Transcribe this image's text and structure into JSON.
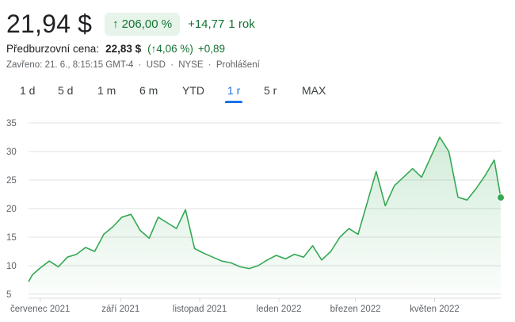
{
  "quote": {
    "price": "21,94 $",
    "change_pct": "206,00 %",
    "change_arrow": "↑",
    "change_abs": "+14,77",
    "period": "1 rok",
    "premarket_label": "Předburzovní cena:",
    "premarket_price": "22,83 $",
    "premarket_pct": "(↑4,06 %)",
    "premarket_abs": "+0,89",
    "closed_info": "Zavřeno: 21. 6., 8:15:15 GMT-4",
    "currency": "USD",
    "exchange": "NYSE",
    "disclaimer": "Prohlášení",
    "separator": "·"
  },
  "tabs": [
    {
      "label": "1 d",
      "active": false
    },
    {
      "label": "5 d",
      "active": false
    },
    {
      "label": "1 m",
      "active": false
    },
    {
      "label": "6 m",
      "active": false
    },
    {
      "label": "YTD",
      "active": false
    },
    {
      "label": "1 r",
      "active": true
    },
    {
      "label": "5 r",
      "active": false
    },
    {
      "label": "MAX",
      "active": false
    }
  ],
  "colors": {
    "line": "#34a853",
    "fill": "#e6f4ea",
    "positive": "#137333",
    "accent": "#1a73e8"
  },
  "chart_data": {
    "type": "area",
    "ylim": [
      5,
      35
    ],
    "yticks": [
      "35",
      "30",
      "25",
      "20",
      "15",
      "10",
      "5"
    ],
    "xticks": [
      "červenec 2021",
      "září 2021",
      "listopad 2021",
      "leden 2022",
      "březen 2022",
      "květen 2022"
    ],
    "grid": true,
    "last_value": 21.94,
    "series": [
      {
        "x": [
          "2021-06-22",
          "2021-06-25",
          "2021-07-01",
          "2021-07-08",
          "2021-07-15",
          "2021-07-22",
          "2021-07-29",
          "2021-08-05",
          "2021-08-12",
          "2021-08-19",
          "2021-08-26",
          "2021-09-02",
          "2021-09-09",
          "2021-09-16",
          "2021-09-23",
          "2021-09-30",
          "2021-10-07",
          "2021-10-14",
          "2021-10-21",
          "2021-10-28",
          "2021-11-04",
          "2021-11-11",
          "2021-11-18",
          "2021-11-25",
          "2021-12-02",
          "2021-12-09",
          "2021-12-16",
          "2021-12-23",
          "2021-12-30",
          "2022-01-06",
          "2022-01-13",
          "2022-01-20",
          "2022-01-27",
          "2022-02-03",
          "2022-02-10",
          "2022-02-17",
          "2022-02-24",
          "2022-03-03",
          "2022-03-10",
          "2022-03-17",
          "2022-03-24",
          "2022-03-31",
          "2022-04-07",
          "2022-04-14",
          "2022-04-21",
          "2022-04-28",
          "2022-05-05",
          "2022-05-12",
          "2022-05-19",
          "2022-05-26",
          "2022-06-02",
          "2022-06-09",
          "2022-06-16",
          "2022-06-21"
        ],
        "values": [
          7.2,
          8.4,
          9.6,
          10.8,
          9.8,
          11.5,
          12.0,
          13.2,
          12.5,
          15.5,
          16.8,
          18.5,
          19.0,
          16.2,
          14.8,
          18.5,
          17.5,
          16.5,
          19.8,
          13.0,
          12.2,
          11.5,
          10.8,
          10.5,
          9.8,
          9.5,
          10.0,
          11.0,
          11.8,
          11.2,
          12.0,
          11.5,
          13.5,
          11.0,
          12.5,
          15.0,
          16.5,
          15.5,
          21.0,
          26.5,
          20.5,
          24.0,
          25.5,
          27.0,
          25.5,
          29.0,
          32.5,
          30.0,
          22.0,
          21.5,
          23.5,
          25.8,
          28.5,
          21.94
        ]
      }
    ]
  }
}
